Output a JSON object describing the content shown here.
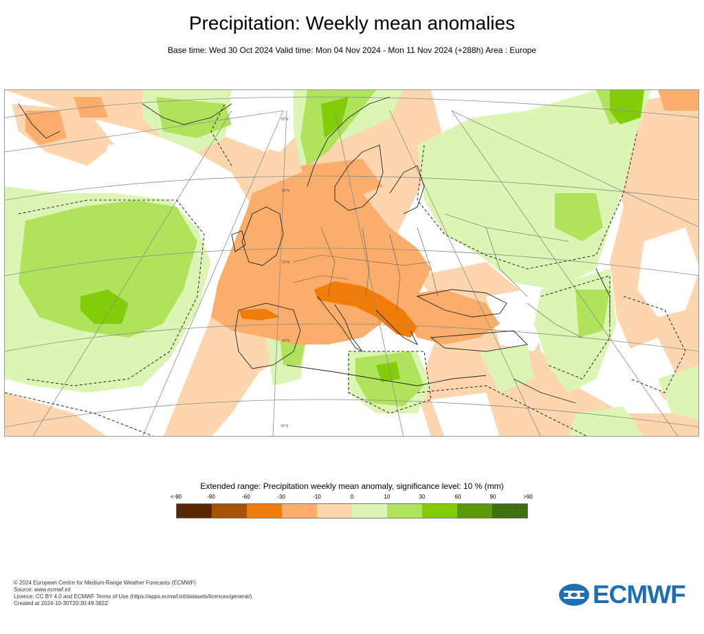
{
  "title": "Precipitation: Weekly mean anomalies",
  "subtitle": "Base time: Wed 30 Oct 2024 Valid time: Mon 04 Nov 2024 - Mon 11 Nov 2024 (+288h) Area : Europe",
  "map": {
    "lat_labels": [
      "70°N",
      "60°N",
      "50°N",
      "40°N",
      "30°N"
    ],
    "colors": {
      "strong_dry": "#f07d0a",
      "moderate_dry": "#fbad6c",
      "light_dry": "#fdd6b0",
      "light_wet": "#dcf4b4",
      "moderate_wet": "#b0e35c",
      "strong_wet": "#82cc0a",
      "coast": "#222222",
      "grid": "#8a8a8a"
    }
  },
  "legend": {
    "title": "Extended range: Precipitation weekly mean anomaly, significance level: 10 % (mm)",
    "ticks": [
      "<-90",
      "-90",
      "-60",
      "-30",
      "-10",
      "0",
      "10",
      "30",
      "60",
      "90",
      ">90"
    ],
    "colors": [
      "#5a2800",
      "#a65208",
      "#f07d0a",
      "#fbad6c",
      "#fdd6b0",
      "#dcf4b4",
      "#b0e35c",
      "#82cc0a",
      "#5a9a0a",
      "#4a7a12"
    ]
  },
  "footer": {
    "line1": "© 2024 European Centre for Medium-Range Weather Forecasts (ECMWF)",
    "line2": "Source: www.ecmwf.int",
    "line3": "Licence: CC BY 4.0 and ECMWF Terms of Use (https://apps.ecmwf.int/datasets/licences/general/)",
    "line4": "Created at 2024-10-30T20:30:49.382Z"
  },
  "logo": {
    "text": "ECMWF",
    "color": "#1e6eb4"
  }
}
